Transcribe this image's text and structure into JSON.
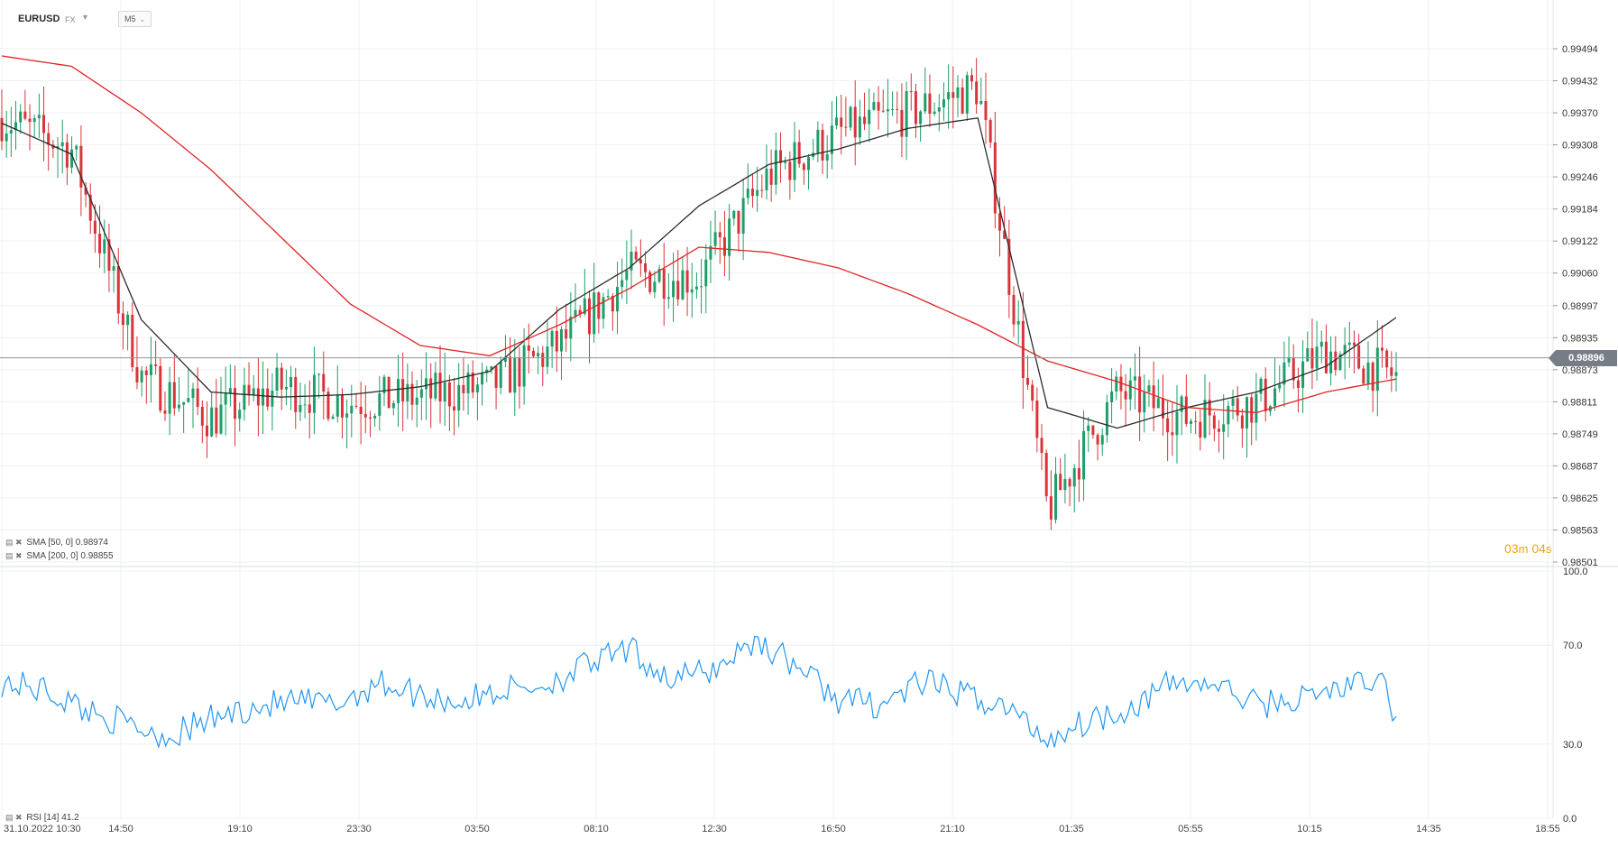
{
  "header": {
    "symbol": "EURUSD",
    "symbol_type": "FX",
    "timeframe": "M5"
  },
  "countdown": {
    "minutes": "03",
    "min_unit": "m",
    "seconds": "04",
    "sec_unit": "s"
  },
  "last_price": "0.98896",
  "indicators": {
    "sma50": "SMA [50, 0]  0.98974",
    "sma200": "SMA [200, 0]  0.98855",
    "rsi": "RSI [14]  41.2"
  },
  "colors": {
    "up": "#1e9e6a",
    "down": "#d9343a",
    "sma50": "#2b2b2b",
    "sma200": "#e02424",
    "rsi": "#2196f3",
    "countdown": "#e8a317",
    "price_badge": "#777d86",
    "grid": "#eef0f3"
  },
  "chart_data": [
    {
      "type": "candlestick",
      "title": "EURUSD",
      "timeframe": "M5",
      "ylim": [
        0.98501,
        0.99525
      ],
      "y_ticks": [
        "0.99494",
        "0.99432",
        "0.99370",
        "0.99308",
        "0.99246",
        "0.99184",
        "0.99122",
        "0.99060",
        "0.98997",
        "0.98935",
        "0.98873",
        "0.98811",
        "0.98749",
        "0.98687",
        "0.98625",
        "0.98563",
        "0.98501"
      ],
      "x_ticks": [
        "31.10.2022  10:30",
        "14:50",
        "19:10",
        "23:30",
        "03:50",
        "08:10",
        "12:30",
        "16:50",
        "21:10",
        "01:35",
        "05:55",
        "10:15",
        "14:35",
        "18:55"
      ],
      "last_price": 0.98896,
      "close_path": {
        "x": [
          0,
          5,
          10,
          15,
          20,
          25,
          30,
          35,
          40,
          45,
          50,
          55,
          60,
          65,
          70,
          75,
          80,
          85,
          90,
          95,
          100
        ],
        "y": [
          0.9936,
          0.993,
          0.9886,
          0.9878,
          0.9884,
          0.9881,
          0.9882,
          0.9884,
          0.9892,
          0.9906,
          0.9905,
          0.9925,
          0.9933,
          0.9937,
          0.9942,
          0.986,
          0.9883,
          0.9878,
          0.9881,
          0.9891,
          0.9886
        ]
      },
      "series": [
        {
          "name": "SMA [50, 0]",
          "last_value": 0.98974,
          "x": [
            0,
            5,
            10,
            15,
            20,
            25,
            30,
            35,
            40,
            45,
            50,
            55,
            60,
            65,
            70,
            75,
            80,
            85,
            90,
            95,
            100
          ],
          "y": [
            0.9935,
            0.9929,
            0.9897,
            0.9883,
            0.9882,
            0.98825,
            0.9884,
            0.9887,
            0.9899,
            0.9907,
            0.9919,
            0.9927,
            0.993,
            0.9934,
            0.9936,
            0.988,
            0.9876,
            0.988,
            0.9883,
            0.9888,
            0.98974
          ]
        },
        {
          "name": "SMA [200, 0]",
          "last_value": 0.98855,
          "x": [
            0,
            5,
            10,
            15,
            20,
            25,
            30,
            35,
            40,
            45,
            50,
            55,
            60,
            65,
            70,
            75,
            80,
            85,
            90,
            95,
            100
          ],
          "y": [
            0.9948,
            0.9946,
            0.9937,
            0.9926,
            0.9913,
            0.99,
            0.9892,
            0.989,
            0.9896,
            0.9903,
            0.9911,
            0.991,
            0.9907,
            0.9902,
            0.9896,
            0.9889,
            0.9885,
            0.988,
            0.9879,
            0.9883,
            0.98855
          ]
        }
      ]
    },
    {
      "type": "line",
      "title": "RSI [14]",
      "ylim": [
        0,
        100
      ],
      "y_ticks": [
        "100.0",
        "70.0",
        "30.0",
        "0.0"
      ],
      "series": [
        {
          "name": "RSI [14]",
          "last_value": 41.2,
          "x": [
            0,
            3,
            6,
            9,
            12,
            15,
            18,
            21,
            24,
            27,
            30,
            33,
            36,
            39,
            42,
            45,
            48,
            51,
            54,
            57,
            60,
            63,
            66,
            69,
            72,
            75,
            78,
            81,
            84,
            87,
            90,
            93,
            96,
            99,
            100
          ],
          "y": [
            55,
            52,
            44,
            38,
            33,
            40,
            45,
            47,
            46,
            55,
            50,
            47,
            52,
            54,
            62,
            68,
            56,
            60,
            72,
            62,
            48,
            46,
            55,
            50,
            45,
            32,
            40,
            45,
            55,
            54,
            46,
            48,
            53,
            55,
            41.2
          ]
        }
      ]
    }
  ]
}
